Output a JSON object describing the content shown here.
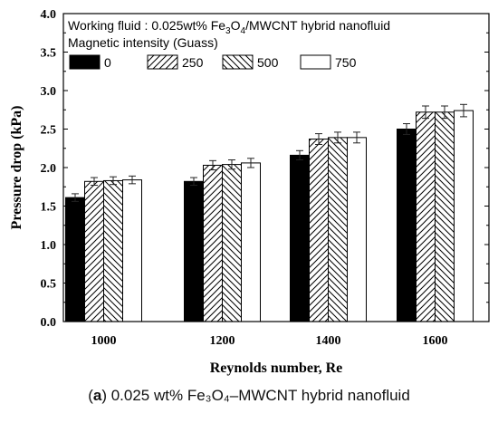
{
  "caption": {
    "prefix_open": "(",
    "letter": "a",
    "rest": ") 0.025 wt% Fe₃O₄–MWCNT hybrid nanofluid"
  },
  "chart_data": {
    "type": "bar",
    "title": "",
    "xlabel": "Reynolds number, Re",
    "ylabel": "Pressure drop (kPa)",
    "ylim": [
      0,
      4.0
    ],
    "yticks": [
      "0.0",
      "0.5",
      "1.0",
      "1.5",
      "2.0",
      "2.5",
      "3.0",
      "3.5",
      "4.0"
    ],
    "categories": [
      "1000",
      "1200",
      "1400",
      "1600"
    ],
    "legend_placement": "top-left",
    "legend_title_line1": "Working fluid : 0.025wt% Fe3O4/MWCNT hybrid nanofluid",
    "legend_title_line2": "Magnetic intensity (Guass)",
    "series": [
      {
        "name": "0",
        "fill": "solid-black",
        "values": [
          1.61,
          1.82,
          2.16,
          2.5
        ],
        "errors": [
          0.05,
          0.05,
          0.06,
          0.07
        ]
      },
      {
        "name": "250",
        "fill": "hatch-forward",
        "values": [
          1.82,
          2.03,
          2.37,
          2.72
        ],
        "errors": [
          0.05,
          0.06,
          0.07,
          0.08
        ]
      },
      {
        "name": "500",
        "fill": "hatch-backward",
        "values": [
          1.83,
          2.04,
          2.39,
          2.72
        ],
        "errors": [
          0.05,
          0.06,
          0.07,
          0.08
        ]
      },
      {
        "name": "750",
        "fill": "white",
        "values": [
          1.84,
          2.06,
          2.39,
          2.74
        ],
        "errors": [
          0.05,
          0.06,
          0.07,
          0.08
        ]
      }
    ]
  }
}
